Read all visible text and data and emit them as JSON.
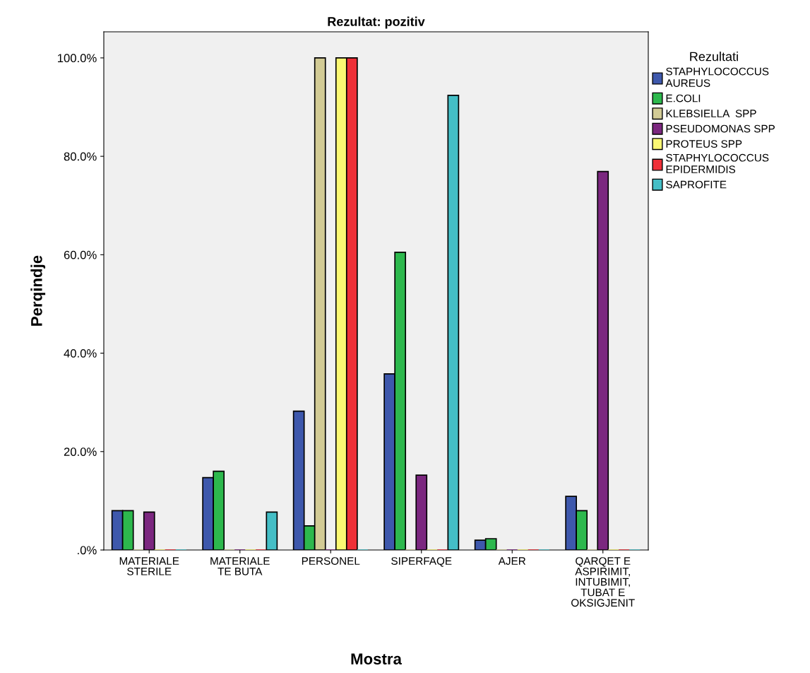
{
  "chart_data": {
    "type": "bar",
    "title": "Rezultat: pozitiv",
    "xlabel": "Mostra",
    "ylabel": "Perqindje",
    "legend_title": "Rezultati",
    "legend": "right",
    "categories": [
      "MATERIALE\nSTERILE",
      "MATERIALE\nTE BUTA",
      "PERSONEL",
      "SIPERFAQE",
      "AJER",
      "QARQET E\nASPIRIMIT,\nINTUBIMIT,\nTUBAT E\nOKSIGJENIT"
    ],
    "ylim": [
      0,
      105.3
    ],
    "yticks": [
      {
        "value": 0,
        "label": ".0%"
      },
      {
        "value": 20,
        "label": "20.0%"
      },
      {
        "value": 40,
        "label": "40.0%"
      },
      {
        "value": 60,
        "label": "60.0%"
      },
      {
        "value": 80,
        "label": "80.0%"
      },
      {
        "value": 100,
        "label": "100.0%"
      }
    ],
    "grid": false,
    "series": [
      {
        "name": "STAPHYLOCOCCUS\nAUREUS",
        "color": "#3e58ac",
        "values": [
          8.0,
          14.7,
          28.2,
          35.8,
          2.0,
          10.9
        ]
      },
      {
        "name": "E.COLI",
        "color": "#2db84d",
        "values": [
          8.0,
          16.0,
          4.9,
          60.5,
          2.3,
          8.0
        ]
      },
      {
        "name": "KLEBSIELLA  SPP",
        "color": "#d2cb95",
        "values": [
          0,
          0,
          100,
          0,
          0,
          0
        ]
      },
      {
        "name": "PSEUDOMONAS SPP",
        "color": "#7b277f",
        "values": [
          7.7,
          0,
          0,
          15.2,
          0,
          76.9
        ]
      },
      {
        "name": "PROTEUS SPP",
        "color": "#fbf873",
        "values": [
          0,
          0,
          100,
          0,
          0,
          0
        ]
      },
      {
        "name": "STAPHYLOCOCCUS\nEPIDERMIDIS",
        "color": "#ef3038",
        "values": [
          0,
          0,
          100,
          0,
          0,
          0
        ]
      },
      {
        "name": "SAPROFITE",
        "color": "#44bec6",
        "values": [
          0,
          7.7,
          0,
          92.4,
          0,
          0
        ]
      }
    ]
  }
}
